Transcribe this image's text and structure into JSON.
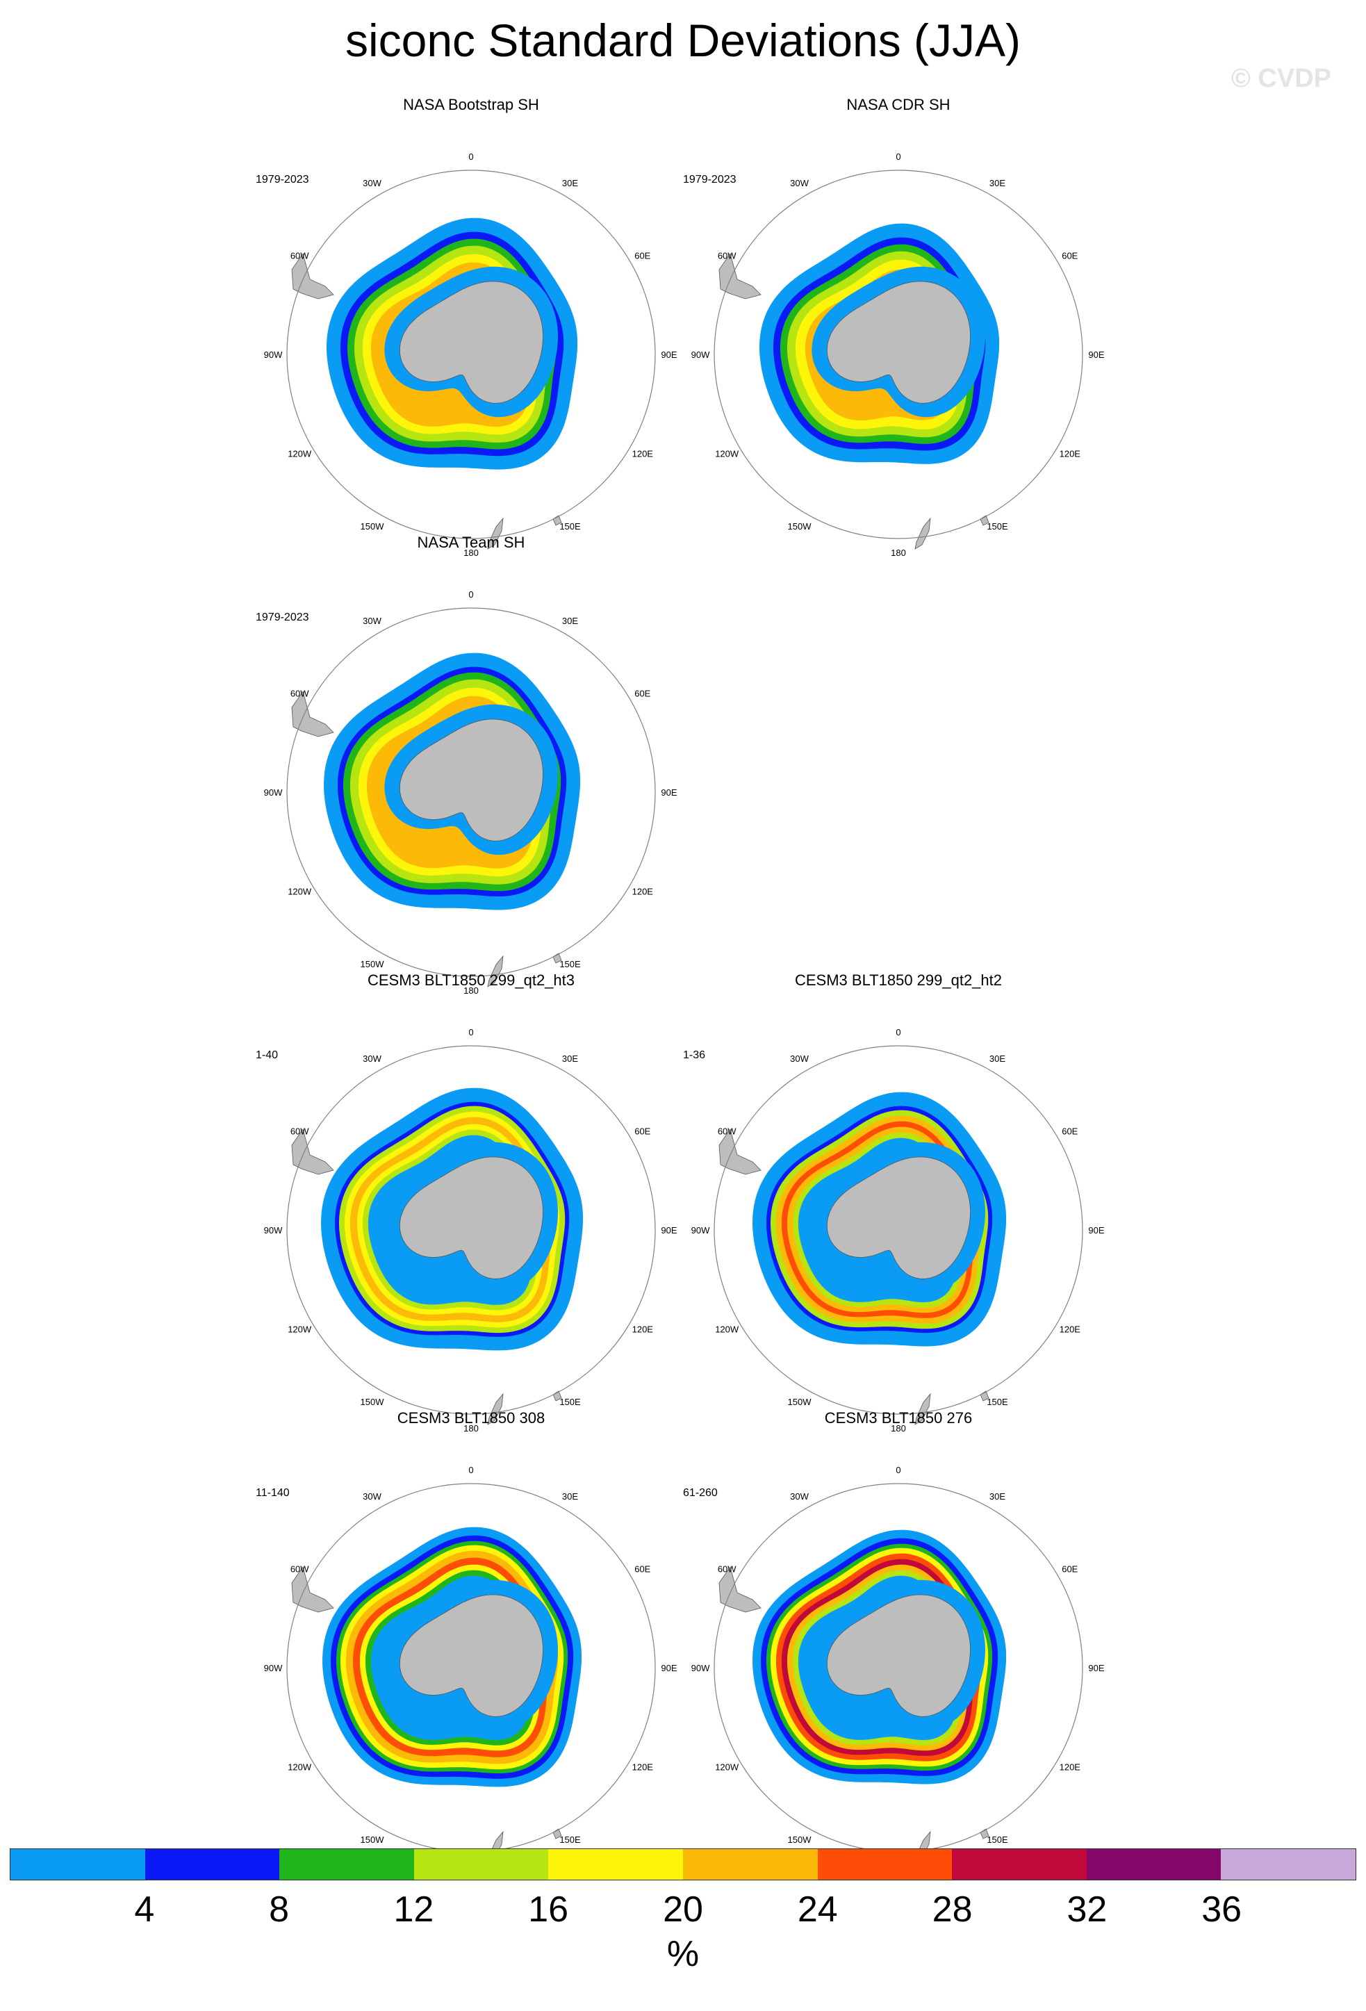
{
  "title": "siconc Standard Deviations (JJA)",
  "watermark": "© CVDP",
  "colors": {
    "land": "#bdbdbd",
    "circle": "#808080",
    "levels": [
      "#0a9bf5",
      "#0a19f5",
      "#21b51c",
      "#b6e512",
      "#fdf60a",
      "#fdb908",
      "#fd4d06",
      "#c0083a",
      "#84086b",
      "#c9a8da"
    ]
  },
  "lon_labels": [
    "0",
    "30E",
    "60E",
    "90E",
    "120E",
    "150E",
    "180",
    "150W",
    "120W",
    "90W",
    "60W",
    "30W"
  ],
  "panels": [
    {
      "title": "NASA Bootstrap SH",
      "period": "1979-2023",
      "pattern": "obs_bootstrap"
    },
    {
      "title": "NASA CDR SH",
      "period": "1979-2023",
      "pattern": "obs_cdr"
    },
    {
      "title": "NASA Team SH",
      "period": "1979-2023",
      "pattern": "obs_team"
    },
    {
      "title": "CESM3 BLT1850 299_qt2_ht3",
      "period": "1-40",
      "pattern": "model_ht3"
    },
    {
      "title": "CESM3 BLT1850 299_qt2_ht2",
      "period": "1-36",
      "pattern": "model_ht2"
    },
    {
      "title": "CESM3 BLT1850 308",
      "period": "11-140",
      "pattern": "model_308"
    },
    {
      "title": "CESM3 BLT1850 276",
      "period": "61-260",
      "pattern": "model_276"
    }
  ],
  "colorbar": {
    "labels": [
      "4",
      "8",
      "12",
      "16",
      "20",
      "24",
      "28",
      "32",
      "36"
    ],
    "units": "%"
  }
}
